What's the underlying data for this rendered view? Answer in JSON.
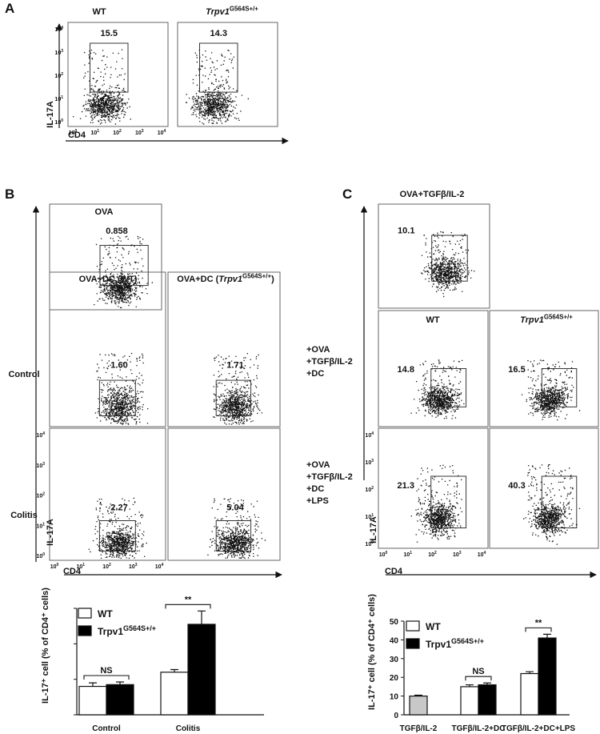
{
  "panel_a": {
    "label": "A",
    "y_axis": "IL-17A",
    "x_axis": "CD4",
    "ticks": [
      {
        "base": "10",
        "exp": "0"
      },
      {
        "base": "10",
        "exp": "1"
      },
      {
        "base": "10",
        "exp": "2"
      },
      {
        "base": "10",
        "exp": "3"
      },
      {
        "base": "10",
        "exp": "4"
      }
    ],
    "plots": [
      {
        "title": {
          "text": "WT"
        },
        "gate": "15.5"
      },
      {
        "title": {
          "gene": "Trpv1",
          "allele": "G564S+/+"
        },
        "gate": "14.3"
      }
    ]
  },
  "panel_b": {
    "label": "B",
    "y_axis": "IL-17A",
    "x_axis": "CD4",
    "ticks": [
      {
        "base": "10",
        "exp": "0"
      },
      {
        "base": "10",
        "exp": "1"
      },
      {
        "base": "10",
        "exp": "2"
      },
      {
        "base": "10",
        "exp": "3"
      },
      {
        "base": "10",
        "exp": "4"
      }
    ],
    "top": {
      "title": {
        "text": "OVA"
      },
      "gate": "0.858"
    },
    "col_titles": [
      {
        "text": "OVA+DC (WT)"
      },
      {
        "prefix": "OVA+DC (",
        "gene": "Trpv1",
        "allele": "G564S+/+",
        "suffix": ")"
      }
    ],
    "rows": [
      {
        "label": [
          "Control"
        ],
        "gates": [
          "1.60",
          "1.71"
        ]
      },
      {
        "label": [
          "Colitis"
        ],
        "gates": [
          "2.27",
          "5.04"
        ]
      }
    ]
  },
  "panel_c": {
    "label": "C",
    "y_axis": "IL-17A",
    "x_axis": "CD4",
    "ticks": [
      {
        "base": "10",
        "exp": "0"
      },
      {
        "base": "10",
        "exp": "1"
      },
      {
        "base": "10",
        "exp": "2"
      },
      {
        "base": "10",
        "exp": "3"
      },
      {
        "base": "10",
        "exp": "4"
      }
    ],
    "top": {
      "title": {
        "text": "OVA+TGFβ/IL-2"
      },
      "gate": "10.1"
    },
    "col_titles": [
      {
        "text": "WT"
      },
      {
        "gene": "Trpv1",
        "allele": "G564S+/+"
      }
    ],
    "rows": [
      {
        "label": [
          "+OVA",
          "+TGFβ/IL-2",
          "+DC"
        ],
        "gates": [
          "14.8",
          "16.5"
        ]
      },
      {
        "label": [
          "+OVA",
          "+TGFβ/IL-2",
          "+DC",
          "+LPS"
        ],
        "gates": [
          "21.3",
          "40.3"
        ]
      }
    ]
  },
  "chart_data": [
    {
      "type": "bar",
      "y_label": "IL-17⁺ cell (% of CD4⁺ cells)",
      "categories": [
        "Control",
        "Colitis"
      ],
      "series": [
        {
          "name": "WT",
          "color": "#ffffff",
          "values": [
            1.6,
            2.4
          ],
          "errors": [
            0.2,
            0.15
          ]
        },
        {
          "name": "Trpv1",
          "name_sup": "G564S+/+",
          "color": "#000000",
          "values": [
            1.7,
            5.1
          ],
          "errors": [
            0.15,
            0.75
          ]
        }
      ],
      "annotations": [
        "NS",
        "**"
      ],
      "ylim": [
        0,
        6
      ],
      "yticks": [
        0,
        2,
        4,
        6
      ],
      "tick_labels": false
    },
    {
      "type": "bar",
      "y_label": "IL-17⁺ cell (% of CD4⁺ cells)",
      "categories": [
        "TGFβ/IL-2",
        "TGFβ/IL-2+DC",
        "TGFβ/IL-2+DC+LPS"
      ],
      "series": [
        {
          "color": "#c8c8c8",
          "values": [
            10,
            null,
            null
          ],
          "errors": [
            0.5,
            null,
            null
          ]
        },
        {
          "name": "WT",
          "color": "#ffffff",
          "values": [
            null,
            15,
            22
          ],
          "errors": [
            null,
            1,
            1
          ]
        },
        {
          "name": "Trpv1",
          "name_sup": "G564S+/+",
          "color": "#000000",
          "values": [
            null,
            16,
            41
          ],
          "errors": [
            null,
            1,
            2
          ]
        }
      ],
      "annotations": [
        "NS",
        "**"
      ],
      "ylim": [
        0,
        50
      ],
      "yticks": [
        0,
        10,
        20,
        30,
        40,
        50
      ],
      "tick_labels": true
    }
  ]
}
